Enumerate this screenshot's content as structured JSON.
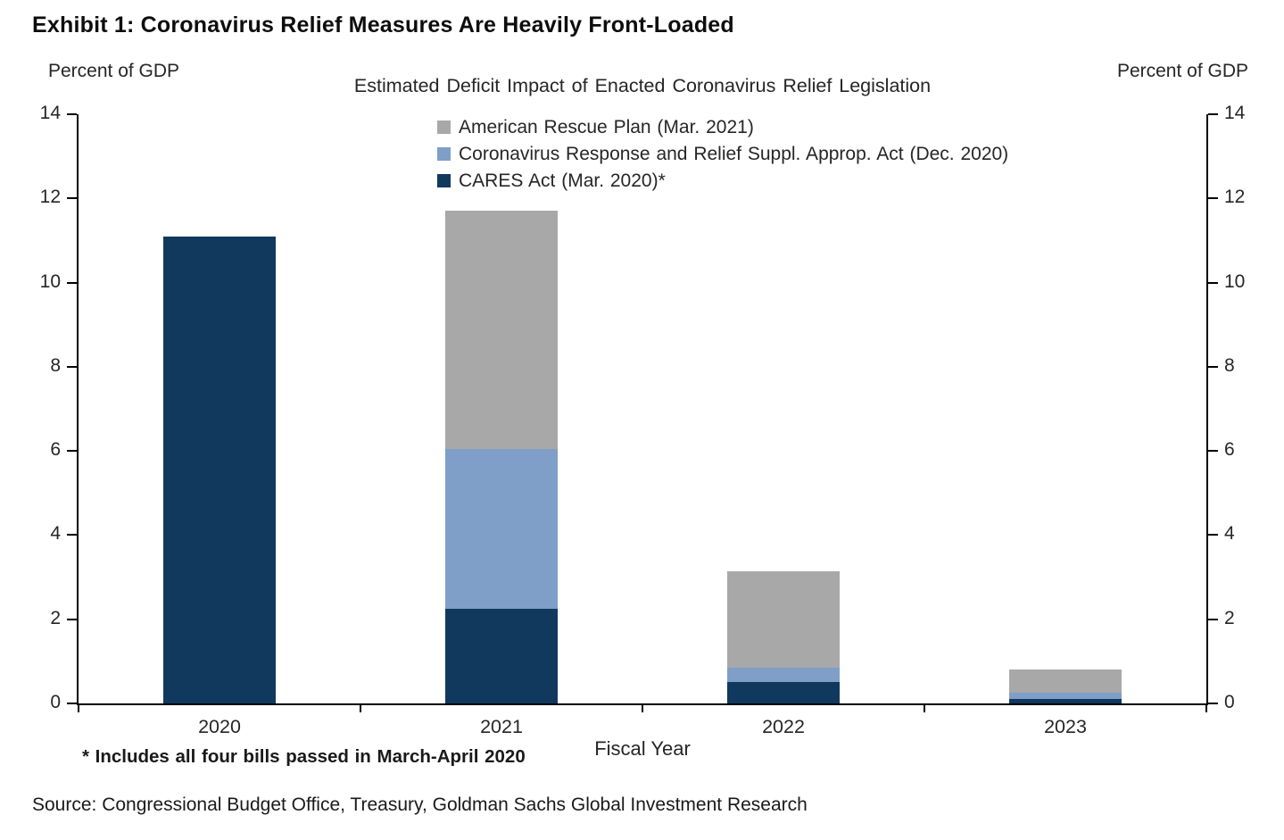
{
  "exhibit_title": "Exhibit 1: Coronavirus Relief Measures Are Heavily Front-Loaded",
  "left_axis_title": "Percent of GDP",
  "right_axis_title": "Percent of GDP",
  "footnote": "* Includes all four bills passed in March-April 2020",
  "source": "Source: Congressional Budget Office, Treasury, Goldman Sachs Global Investment Research",
  "chart_data": {
    "type": "bar",
    "stacked": true,
    "title": "Estimated Deficit Impact of Enacted Coronavirus  Relief Legislation",
    "xlabel": "Fiscal Year",
    "ylabel": "Percent of GDP",
    "ylim": [
      0,
      14
    ],
    "ytick_step": 2,
    "grid": false,
    "legend_position": "top-center",
    "categories": [
      "2020",
      "2021",
      "2022",
      "2023"
    ],
    "series": [
      {
        "name": "CARES Act (Mar. 2020)*",
        "color": "#11395e",
        "values": [
          11.1,
          2.25,
          0.5,
          0.1
        ]
      },
      {
        "name": "Coronavirus  Response and Relief Suppl. Approp. Act (Dec. 2020)",
        "color": "#7f9fc8",
        "values": [
          0,
          3.8,
          0.35,
          0.15
        ]
      },
      {
        "name": "American Rescue Plan (Mar. 2021)",
        "color": "#a8a8a8",
        "values": [
          0,
          5.65,
          2.3,
          0.55
        ]
      }
    ]
  },
  "colors": {
    "axis": "#000000",
    "text": "#262626"
  }
}
